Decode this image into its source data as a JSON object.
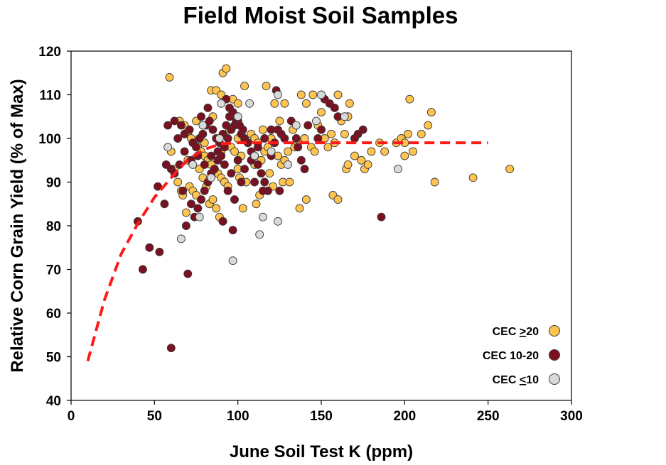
{
  "chart_data": {
    "type": "scatter",
    "title": "Field Moist Soil Samples",
    "xlabel": "June Soil Test K (ppm)",
    "ylabel": "Relative Corn Grain Yield (% of Max)",
    "xlim": [
      0,
      300
    ],
    "ylim": [
      40,
      120
    ],
    "xticks": [
      0,
      50,
      100,
      150,
      200,
      250,
      300
    ],
    "yticks": [
      40,
      50,
      60,
      70,
      80,
      90,
      100,
      110,
      120
    ],
    "grid": false,
    "legend_position": "bottom-right",
    "fit_curve": {
      "style": "dashed",
      "color": "#ff1a1a",
      "x": [
        10,
        20,
        30,
        40,
        50,
        60,
        70,
        80,
        90,
        100,
        110,
        120,
        150,
        200,
        250
      ],
      "y": [
        49,
        63,
        73.5,
        80.5,
        86.5,
        91,
        95.2,
        97.5,
        98.8,
        99,
        99,
        99,
        99,
        99,
        99
      ]
    },
    "series": [
      {
        "name": "CEC >20",
        "legend_label": {
          "prefix": "CEC ",
          "value": "20",
          "underlined_symbol": ">"
        },
        "color": "#fec44f",
        "points": [
          [
            59,
            114
          ],
          [
            91,
            115
          ],
          [
            93,
            116
          ],
          [
            104,
            112
          ],
          [
            117,
            112
          ],
          [
            84,
            111
          ],
          [
            87,
            111
          ],
          [
            90,
            110
          ],
          [
            138,
            110
          ],
          [
            145,
            110
          ],
          [
            160,
            110
          ],
          [
            167,
            108
          ],
          [
            150,
            106
          ],
          [
            166,
            105
          ],
          [
            216,
            106
          ],
          [
            203,
            109
          ],
          [
            141,
            108
          ],
          [
            128,
            108
          ],
          [
            122,
            108
          ],
          [
            97,
            109
          ],
          [
            100,
            108
          ],
          [
            65,
            104
          ],
          [
            68,
            103
          ],
          [
            70,
            101
          ],
          [
            72,
            100
          ],
          [
            74,
            99
          ],
          [
            76,
            98
          ],
          [
            78,
            97
          ],
          [
            80,
            96
          ],
          [
            82,
            95
          ],
          [
            84,
            94
          ],
          [
            86,
            93
          ],
          [
            88,
            92
          ],
          [
            90,
            91
          ],
          [
            92,
            90
          ],
          [
            94,
            89
          ],
          [
            96,
            98
          ],
          [
            98,
            97
          ],
          [
            102,
            96
          ],
          [
            106,
            99
          ],
          [
            108,
            101
          ],
          [
            110,
            100
          ],
          [
            112,
            99
          ],
          [
            114,
            95
          ],
          [
            116,
            97
          ],
          [
            118,
            98
          ],
          [
            120,
            100
          ],
          [
            122,
            99
          ],
          [
            124,
            96
          ],
          [
            126,
            94
          ],
          [
            128,
            95
          ],
          [
            130,
            97
          ],
          [
            134,
            98
          ],
          [
            136,
            99
          ],
          [
            140,
            100
          ],
          [
            144,
            98
          ],
          [
            146,
            97
          ],
          [
            152,
            100
          ],
          [
            154,
            98
          ],
          [
            156,
            101
          ],
          [
            158,
            99
          ],
          [
            162,
            104
          ],
          [
            164,
            101
          ],
          [
            170,
            96
          ],
          [
            174,
            95
          ],
          [
            176,
            93
          ],
          [
            178,
            94
          ],
          [
            185,
            99
          ],
          [
            188,
            97
          ],
          [
            195,
            99
          ],
          [
            198,
            100
          ],
          [
            200,
            99
          ],
          [
            202,
            101
          ],
          [
            205,
            97
          ],
          [
            210,
            101
          ],
          [
            214,
            103
          ],
          [
            218,
            90
          ],
          [
            241,
            91
          ],
          [
            263,
            93
          ],
          [
            200,
            96
          ],
          [
            165,
            93
          ],
          [
            60,
            97
          ],
          [
            62,
            93
          ],
          [
            64,
            90
          ],
          [
            66,
            88
          ],
          [
            67,
            87
          ],
          [
            69,
            83
          ],
          [
            71,
            89
          ],
          [
            73,
            88
          ],
          [
            75,
            87
          ],
          [
            77,
            93
          ],
          [
            79,
            91
          ],
          [
            81,
            89
          ],
          [
            83,
            85
          ],
          [
            85,
            86
          ],
          [
            87,
            84
          ],
          [
            89,
            82
          ],
          [
            91,
            81
          ],
          [
            101,
            91
          ],
          [
            103,
            84
          ],
          [
            105,
            90
          ],
          [
            111,
            85
          ],
          [
            113,
            87
          ],
          [
            119,
            92
          ],
          [
            121,
            89
          ],
          [
            127,
            90
          ],
          [
            131,
            90
          ],
          [
            137,
            84
          ],
          [
            141,
            86
          ],
          [
            157,
            87
          ],
          [
            160,
            86
          ],
          [
            166,
            94
          ],
          [
            180,
            97
          ],
          [
            75,
            104
          ],
          [
            85,
            105
          ],
          [
            95,
            102
          ],
          [
            99,
            104
          ],
          [
            115,
            102
          ],
          [
            125,
            104
          ],
          [
            133,
            102
          ],
          [
            148,
            103
          ],
          [
            70,
            95
          ],
          [
            80,
            99
          ],
          [
            90,
            97
          ],
          [
            100,
            93
          ],
          [
            110,
            94
          ],
          [
            100,
            100
          ]
        ]
      },
      {
        "name": "CEC 10-20",
        "legend_label": {
          "prefix": "CEC ",
          "value": "10-20",
          "underlined_symbol": ""
        },
        "color": "#7b1020",
        "points": [
          [
            60,
            52
          ],
          [
            40,
            81
          ],
          [
            43,
            70
          ],
          [
            47,
            75
          ],
          [
            53,
            74
          ],
          [
            56,
            85
          ],
          [
            52,
            89
          ],
          [
            57,
            94
          ],
          [
            60,
            93
          ],
          [
            62,
            92
          ],
          [
            65,
            94
          ],
          [
            67,
            88
          ],
          [
            69,
            80
          ],
          [
            70,
            69
          ],
          [
            72,
            85
          ],
          [
            74,
            82
          ],
          [
            76,
            84
          ],
          [
            78,
            86
          ],
          [
            80,
            88
          ],
          [
            82,
            90
          ],
          [
            84,
            92
          ],
          [
            86,
            93
          ],
          [
            88,
            95
          ],
          [
            90,
            96
          ],
          [
            92,
            98
          ],
          [
            94,
            100
          ],
          [
            96,
            102
          ],
          [
            98,
            103
          ],
          [
            100,
            104
          ],
          [
            102,
            101
          ],
          [
            104,
            100
          ],
          [
            106,
            99
          ],
          [
            108,
            97
          ],
          [
            110,
            96
          ],
          [
            112,
            94
          ],
          [
            114,
            92
          ],
          [
            116,
            90
          ],
          [
            118,
            88
          ],
          [
            120,
            96
          ],
          [
            122,
            99
          ],
          [
            124,
            102
          ],
          [
            126,
            101
          ],
          [
            128,
            100
          ],
          [
            132,
            104
          ],
          [
            136,
            98
          ],
          [
            138,
            95
          ],
          [
            142,
            103
          ],
          [
            148,
            100
          ],
          [
            152,
            109
          ],
          [
            155,
            108
          ],
          [
            158,
            107
          ],
          [
            172,
            101
          ],
          [
            175,
            102
          ],
          [
            186,
            82
          ],
          [
            97,
            79
          ],
          [
            91,
            81
          ],
          [
            94,
            88
          ],
          [
            98,
            86
          ],
          [
            102,
            90
          ],
          [
            110,
            90
          ],
          [
            115,
            88
          ],
          [
            125,
            88
          ],
          [
            140,
            93
          ],
          [
            58,
            103
          ],
          [
            62,
            104
          ],
          [
            66,
            103
          ],
          [
            68,
            101
          ],
          [
            71,
            102
          ],
          [
            73,
            99
          ],
          [
            75,
            98
          ],
          [
            77,
            100
          ],
          [
            79,
            101
          ],
          [
            81,
            103
          ],
          [
            83,
            104
          ],
          [
            85,
            102
          ],
          [
            87,
            100
          ],
          [
            89,
            99
          ],
          [
            91,
            101
          ],
          [
            93,
            103
          ],
          [
            95,
            105
          ],
          [
            97,
            106
          ],
          [
            99,
            104
          ],
          [
            101,
            103
          ],
          [
            103,
            102
          ],
          [
            64,
            100
          ],
          [
            68,
            97
          ],
          [
            72,
            95
          ],
          [
            76,
            96
          ],
          [
            80,
            94
          ],
          [
            84,
            96
          ],
          [
            88,
            97
          ],
          [
            92,
            94
          ],
          [
            96,
            92
          ],
          [
            100,
            95
          ],
          [
            104,
            93
          ],
          [
            108,
            95
          ],
          [
            112,
            98
          ],
          [
            116,
            100
          ],
          [
            120,
            102
          ],
          [
            95,
            107
          ],
          [
            93,
            109
          ],
          [
            78,
            105
          ],
          [
            82,
            107
          ],
          [
            123,
            111
          ],
          [
            135,
            100
          ],
          [
            150,
            102
          ],
          [
            160,
            105
          ],
          [
            170,
            100
          ]
        ]
      },
      {
        "name": "CEC 10",
        "legend_label": {
          "prefix": "CEC ",
          "value": "10",
          "underlined_symbol": "<"
        },
        "color": "#d9d9d9",
        "points": [
          [
            58,
            98
          ],
          [
            66,
            77
          ],
          [
            77,
            82
          ],
          [
            97,
            72
          ],
          [
            113,
            78
          ],
          [
            115,
            82
          ],
          [
            124,
            81
          ],
          [
            90,
            108
          ],
          [
            107,
            108
          ],
          [
            124,
            110
          ],
          [
            150,
            110
          ],
          [
            164,
            105
          ],
          [
            196,
            93
          ],
          [
            79,
            103
          ],
          [
            73,
            94
          ],
          [
            89,
            100
          ],
          [
            100,
            105
          ],
          [
            120,
            97
          ],
          [
            135,
            103
          ],
          [
            110,
            96
          ],
          [
            130,
            94
          ],
          [
            84,
            91
          ],
          [
            147,
            104
          ]
        ]
      }
    ]
  }
}
